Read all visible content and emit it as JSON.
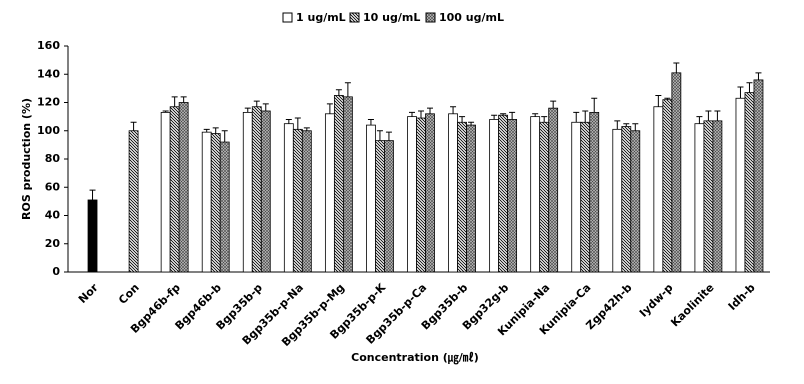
{
  "chart_data": {
    "type": "bar",
    "y_label": "ROS production (%)",
    "x_label": "Concentration (㎍/㎖)",
    "categories": [
      "Nor",
      "Con",
      "Bgp46b-fp",
      "Bgp46b-b",
      "Bgp35b-p",
      "Bgp35b-p-Na",
      "Bgp35b-p-Mg",
      "Bgp35b-p-K",
      "Bgp35b-p-Ca",
      "Bgp35b-b",
      "Bgp32g-b",
      "Kunipia-Na",
      "Kunipia-Ca",
      "Zgp42h-b",
      "Iydw-p",
      "Kaolinite",
      "Idh-b"
    ],
    "series": [
      {
        "name": "1 ug/mL",
        "color": "#ffffff",
        "pattern": "solid",
        "point_colors": [
          "#000000",
          null,
          null,
          null,
          null,
          null,
          null,
          null,
          null,
          null,
          null,
          null,
          null,
          null,
          null,
          null,
          null
        ],
        "values": [
          51,
          null,
          113,
          99,
          113,
          105,
          112,
          104,
          110,
          112,
          108,
          110,
          106,
          101,
          117,
          105,
          123
        ],
        "errors": [
          7,
          null,
          1,
          2,
          3,
          3,
          7,
          4,
          3,
          5,
          3,
          2,
          7,
          6,
          8,
          5,
          8
        ]
      },
      {
        "name": "10 ug/mL",
        "color": "#000000",
        "pattern": "hatch",
        "values": [
          null,
          100,
          117,
          98,
          117,
          101,
          125,
          93,
          109,
          106,
          111,
          106,
          106,
          103,
          122,
          107,
          127
        ],
        "errors": [
          null,
          6,
          7,
          4,
          4,
          8,
          4,
          7,
          5,
          4,
          1,
          4,
          8,
          2,
          1,
          7,
          7
        ]
      },
      {
        "name": "100 ug/mL",
        "color": "#000000",
        "pattern": "cross",
        "values": [
          null,
          null,
          120,
          92,
          114,
          100,
          124,
          93,
          112,
          104,
          108,
          116,
          113,
          100,
          141,
          107,
          136
        ],
        "errors": [
          null,
          null,
          4,
          8,
          5,
          2,
          10,
          6,
          4,
          2,
          5,
          5,
          10,
          5,
          7,
          7,
          5
        ]
      }
    ],
    "ylim": [
      0,
      160
    ],
    "yticks": [
      0,
      20,
      40,
      60,
      80,
      100,
      120,
      140,
      160
    ],
    "grid": false
  }
}
